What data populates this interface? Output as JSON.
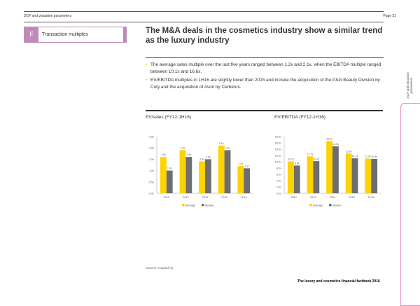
{
  "header": {
    "section": "DCF and valuation parameters",
    "page": "Page 31"
  },
  "section_box": {
    "letter": "F",
    "label": "Transaction multiples"
  },
  "title": "The M&A deals in the cosmetics industry show a similar trend as the luxury industry",
  "bullets": [
    "The average sales multiple over the last five years ranged between 1.2x and 2.1x, when the EBITDA multiple ranged between 10.1x and 16.6x.",
    "EV/EBITDA multiples in 1H16 are slightly lower than 2015 and include the acquisition of the P&G Beauty Division by Coty and the acquisition of Avon by Cerberus."
  ],
  "side_tab": "DCF and valuation parameters",
  "source": "Source: Capital IQ",
  "footer": "The luxury and cosmetics financial factbook 2016",
  "colors": {
    "average": "#ffd200",
    "median": "#6d6e70",
    "accent": "#c08ab8"
  },
  "chart_data": [
    {
      "type": "bar",
      "title": "EV/sales (FY12-1H16)",
      "categories": [
        "2012",
        "2013",
        "2014",
        "2015",
        "1H16"
      ],
      "series": [
        {
          "name": "Average",
          "values": [
            1.6,
            1.9,
            1.4,
            2.1,
            1.2
          ]
        },
        {
          "name": "Median",
          "values": [
            1.0,
            1.6,
            1.5,
            1.9,
            1.1
          ]
        }
      ],
      "ylim": [
        0,
        2.5
      ],
      "yticks": [
        "0.0x",
        "0.5x",
        "1.0x",
        "1.5x",
        "2.0x",
        "2.5x"
      ],
      "ytick_values": [
        0,
        0.5,
        1.0,
        1.5,
        2.0,
        2.5
      ],
      "decimals": 1,
      "legend": "bottom"
    },
    {
      "type": "bar",
      "title": "EV/EBITDA (FY12-1H16)",
      "categories": [
        "2012",
        "2013",
        "2014",
        "2015",
        "1H16"
      ],
      "series": [
        {
          "name": "Average",
          "values": [
            10.1,
            11.7,
            16.6,
            12.6,
            11.0
          ]
        },
        {
          "name": "Median",
          "values": [
            8.8,
            10.2,
            14.9,
            11.1,
            10.9
          ]
        }
      ],
      "ylim": [
        0,
        18
      ],
      "yticks": [
        "0.0x",
        "2.0x",
        "4.0x",
        "6.0x",
        "8.0x",
        "10.0x",
        "12.0x",
        "14.0x",
        "16.0x",
        "18.0x"
      ],
      "ytick_values": [
        0,
        2,
        4,
        6,
        8,
        10,
        12,
        14,
        16,
        18
      ],
      "decimals": 1,
      "legend": "bottom"
    }
  ]
}
